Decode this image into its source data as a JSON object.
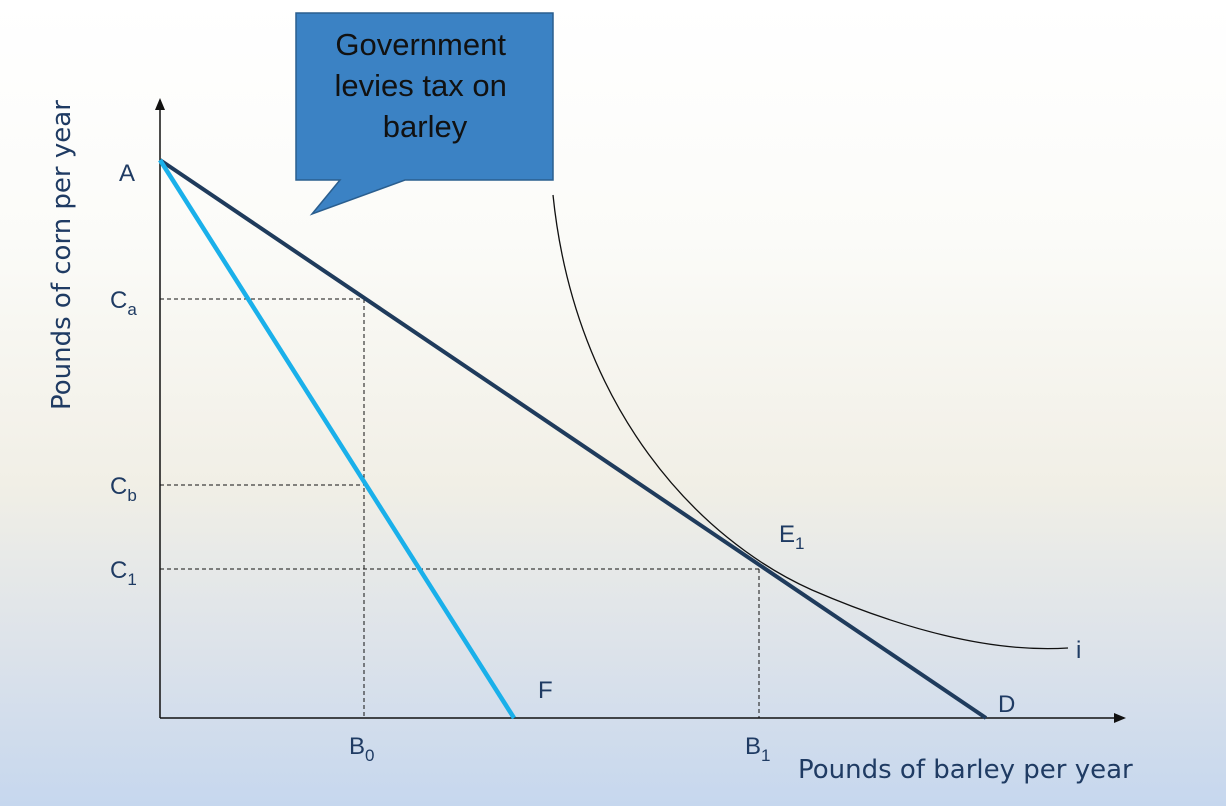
{
  "axes": {
    "x_title": "Pounds of barley per year",
    "y_title": "Pounds of corn per year"
  },
  "callout": {
    "lines": [
      "Government",
      "levies tax on",
      "barley"
    ]
  },
  "points": {
    "A": "A",
    "D": "D",
    "F": "F",
    "E1": {
      "base": "E",
      "sub": "1"
    },
    "i": "i"
  },
  "ticks": {
    "Ca": {
      "base": "C",
      "sub": "a"
    },
    "Cb": {
      "base": "C",
      "sub": "b"
    },
    "C1": {
      "base": "C",
      "sub": "1"
    },
    "B0": {
      "base": "B",
      "sub": "0"
    },
    "B1": {
      "base": "B",
      "sub": "1"
    }
  },
  "colors": {
    "budget_line_original": "#1f3b5c",
    "budget_line_taxed": "#1ab0ea",
    "callout_fill": "#3b82c4",
    "label_text": "#1f3b63"
  }
}
